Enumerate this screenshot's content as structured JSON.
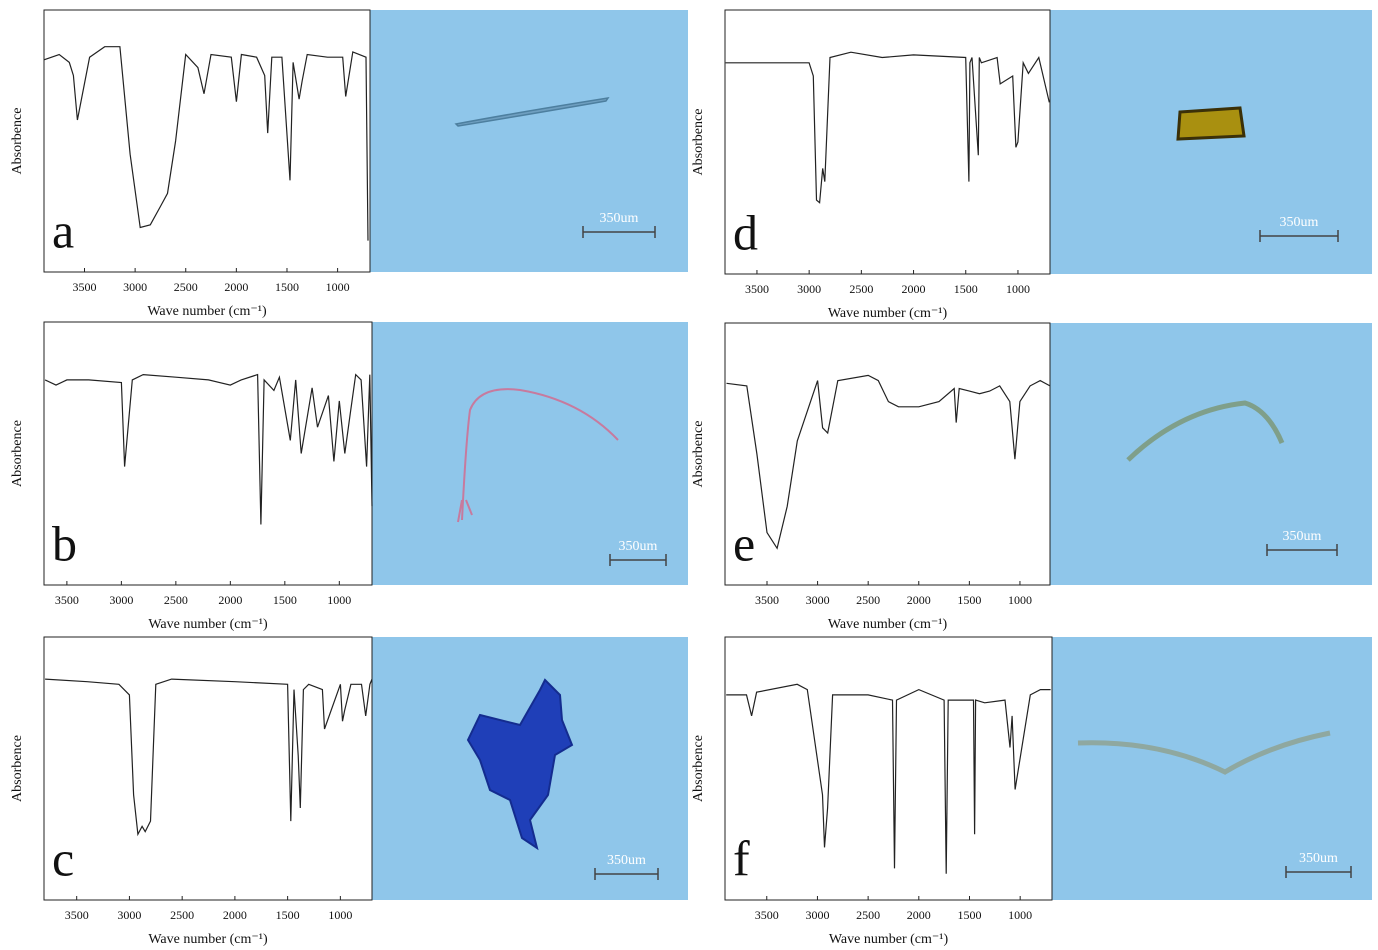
{
  "chart_data": [
    {
      "type": "line",
      "label": "a",
      "ylabel": "Absorbence",
      "xlabel": "Wave number (cm⁻¹)",
      "scale_bar": "350um",
      "color": "#222222",
      "xlim": [
        3900,
        680
      ],
      "ylim": [
        0,
        100
      ],
      "xticks": [
        3500,
        3000,
        2500,
        2000,
        1500,
        1000
      ],
      "x": [
        3900,
        3750,
        3650,
        3610,
        3570,
        3450,
        3300,
        3150,
        3050,
        2950,
        2850,
        2750,
        2680,
        2600,
        2500,
        2380,
        2320,
        2250,
        2050,
        2000,
        1950,
        1800,
        1720,
        1690,
        1650,
        1550,
        1470,
        1440,
        1380,
        1350,
        1300,
        1100,
        950,
        920,
        850,
        720,
        700
      ],
      "values": [
        81,
        83,
        80,
        75,
        58,
        82,
        86,
        86,
        45,
        17,
        18,
        25,
        30,
        50,
        83,
        78,
        68,
        83,
        82,
        65,
        83,
        82,
        75,
        53,
        82,
        82,
        35,
        80,
        66,
        73,
        83,
        82,
        82,
        67,
        84,
        82,
        12
      ]
    },
    {
      "type": "line",
      "label": "b",
      "ylabel": "Absorbence",
      "xlabel": "Wave number (cm⁻¹)",
      "scale_bar": "350um",
      "color": "#222222",
      "xlim": [
        3710,
        700
      ],
      "ylim": [
        0,
        100
      ],
      "xticks": [
        3500,
        3000,
        2500,
        2000,
        1500,
        1000
      ],
      "x": [
        3700,
        3600,
        3500,
        3300,
        3000,
        2970,
        2900,
        2800,
        2500,
        2200,
        2000,
        1900,
        1750,
        1720,
        1690,
        1600,
        1550,
        1450,
        1400,
        1350,
        1250,
        1200,
        1100,
        1050,
        1000,
        950,
        900,
        850,
        800,
        750,
        720,
        700
      ],
      "values": [
        78,
        76,
        78,
        78,
        77,
        45,
        78,
        80,
        79,
        78,
        76,
        78,
        80,
        23,
        78,
        74,
        79,
        55,
        78,
        50,
        75,
        60,
        72,
        47,
        70,
        50,
        65,
        80,
        78,
        45,
        80,
        30
      ]
    },
    {
      "type": "line",
      "label": "c",
      "ylabel": "Absorbence",
      "xlabel": "Wave number (cm⁻¹)",
      "scale_bar": "350um",
      "color": "#222222",
      "xlim": [
        3810,
        700
      ],
      "ylim": [
        0,
        100
      ],
      "xticks": [
        3500,
        3000,
        2500,
        2000,
        1500,
        1000
      ],
      "x": [
        3800,
        3400,
        3100,
        3000,
        2960,
        2920,
        2880,
        2850,
        2800,
        2750,
        2600,
        2000,
        1500,
        1470,
        1440,
        1400,
        1380,
        1350,
        1300,
        1170,
        1150,
        1000,
        980,
        960,
        900,
        800,
        760,
        720,
        700
      ],
      "values": [
        84,
        83,
        82,
        78,
        40,
        25,
        28,
        26,
        30,
        82,
        84,
        83,
        82,
        30,
        80,
        55,
        35,
        80,
        82,
        80,
        65,
        82,
        68,
        72,
        82,
        82,
        70,
        82,
        84
      ]
    },
    {
      "type": "line",
      "label": "d",
      "ylabel": "Absorbence",
      "xlabel": "Wave number (cm⁻¹)",
      "scale_bar": "350um",
      "color": "#222222",
      "xlim": [
        3806,
        693
      ],
      "ylim": [
        0,
        100
      ],
      "xticks": [
        3500,
        3000,
        2500,
        2000,
        1500,
        1000
      ],
      "x": [
        3800,
        3500,
        3000,
        2960,
        2930,
        2900,
        2870,
        2850,
        2800,
        2600,
        2300,
        2000,
        1500,
        1470,
        1460,
        1440,
        1380,
        1370,
        1350,
        1200,
        1170,
        1050,
        1020,
        1000,
        950,
        900,
        800,
        700
      ],
      "values": [
        80,
        80,
        80,
        75,
        28,
        27,
        40,
        35,
        82,
        84,
        82,
        83,
        82,
        35,
        80,
        82,
        45,
        82,
        80,
        82,
        72,
        75,
        48,
        50,
        80,
        76,
        82,
        65
      ]
    },
    {
      "type": "line",
      "label": "e",
      "ylabel": "Absorbence",
      "xlabel": "Wave number (cm⁻¹)",
      "scale_bar": "350um",
      "color": "#222222",
      "xlim": [
        3915,
        703
      ],
      "ylim": [
        0,
        100
      ],
      "xticks": [
        3500,
        3000,
        2500,
        2000,
        1500,
        1000
      ],
      "x": [
        3900,
        3700,
        3600,
        3500,
        3400,
        3300,
        3200,
        3000,
        2950,
        2900,
        2800,
        2500,
        2400,
        2300,
        2200,
        2000,
        1800,
        1650,
        1630,
        1600,
        1500,
        1400,
        1300,
        1200,
        1100,
        1050,
        1000,
        900,
        800,
        703
      ],
      "values": [
        77,
        76,
        50,
        20,
        14,
        30,
        55,
        78,
        60,
        58,
        78,
        80,
        78,
        70,
        68,
        68,
        70,
        75,
        62,
        75,
        74,
        73,
        74,
        76,
        70,
        48,
        70,
        76,
        78,
        76
      ]
    },
    {
      "type": "line",
      "label": "f",
      "ylabel": "Absorbence",
      "xlabel": "Wave number (cm⁻¹)",
      "scale_bar": "350um",
      "color": "#222222",
      "xlim": [
        3912,
        686
      ],
      "ylim": [
        0,
        100
      ],
      "xticks": [
        3500,
        3000,
        2500,
        2000,
        1500,
        1000
      ],
      "x": [
        3900,
        3700,
        3650,
        3600,
        3200,
        3100,
        2950,
        2930,
        2900,
        2850,
        2500,
        2260,
        2240,
        2220,
        2000,
        1750,
        1730,
        1710,
        1600,
        1460,
        1450,
        1440,
        1350,
        1150,
        1100,
        1080,
        1050,
        900,
        800,
        700
      ],
      "values": [
        78,
        78,
        70,
        79,
        82,
        80,
        40,
        20,
        35,
        78,
        78,
        76,
        12,
        76,
        80,
        76,
        10,
        76,
        76,
        76,
        25,
        76,
        75,
        76,
        58,
        70,
        42,
        78,
        80,
        80
      ]
    }
  ]
}
